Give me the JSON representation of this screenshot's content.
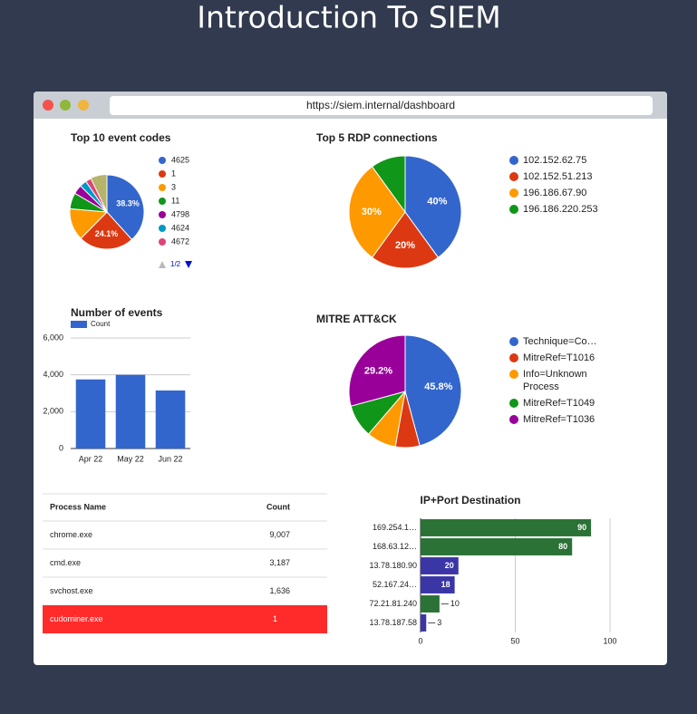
{
  "page": {
    "title": "Introduction To SIEM",
    "url": "https://siem.internal/dashboard"
  },
  "chart_data": [
    {
      "type": "pie",
      "title": "Top 10 event codes",
      "categories": [
        "4625",
        "1",
        "3",
        "11",
        "4798",
        "4624",
        "4672"
      ],
      "values": [
        38.3,
        24.1,
        14,
        7,
        4,
        3,
        2.5
      ],
      "value_labels": [
        "38.3%",
        "24.1%",
        null,
        null,
        null,
        null,
        null
      ],
      "colors": [
        "#3366cc",
        "#dc3912",
        "#ff9900",
        "#109618",
        "#990099",
        "#0099c6",
        "#dd4477"
      ],
      "legend_page": "1/2"
    },
    {
      "type": "pie",
      "title": "Top 5 RDP connections",
      "categories": [
        "102.152.62.75",
        "102.152.51.213",
        "196.186.67.90",
        "196.186.220.253"
      ],
      "values": [
        40,
        20,
        30,
        10
      ],
      "value_labels": [
        "40%",
        "20%",
        "30%",
        null
      ],
      "colors": [
        "#3366cc",
        "#dc3912",
        "#ff9900",
        "#109618"
      ]
    },
    {
      "type": "bar",
      "title": "Number of events",
      "categories": [
        "Apr 22",
        "May 22",
        "Jun 22"
      ],
      "series": [
        {
          "name": "Count",
          "color": "#3366cc",
          "values": [
            3750,
            4000,
            3150
          ]
        }
      ],
      "ylim": [
        0,
        6000
      ],
      "yticks": [
        0,
        {
          "value": 2000,
          "label": "2,000"
        },
        {
          "value": 4000,
          "label": "4,000"
        },
        {
          "value": 6000,
          "label": "6,000"
        }
      ],
      "grid": true
    },
    {
      "type": "pie",
      "title": "MITRE ATT&CK",
      "categories": [
        "Technique=Co…",
        "MitreRef=T1016",
        "Info=Unknown Process",
        "MitreRef=T1049",
        "MitreRef=T1036"
      ],
      "values": [
        45.8,
        7,
        8.5,
        9.5,
        29.2
      ],
      "value_labels": [
        "45.8%",
        null,
        null,
        null,
        "29.2%"
      ],
      "colors": [
        "#3366cc",
        "#dc3912",
        "#ff9900",
        "#109618",
        "#990099"
      ]
    },
    {
      "type": "hbar",
      "title": "IP+Port Destination",
      "categories": [
        "169.254.1…",
        "168.63.12…",
        "13.78.180.90",
        "52.167.24…",
        "72.21.81.240",
        "13.78.187.58"
      ],
      "values": [
        90,
        80,
        20,
        18,
        10,
        3
      ],
      "colors": [
        "#2a7236",
        "#2a7236",
        "#3b36a6",
        "#3b36a6",
        "#2a7236",
        "#3b36a6"
      ],
      "xlim": [
        0,
        100
      ],
      "xticks": [
        0,
        50,
        100
      ],
      "grid": true
    }
  ],
  "table": {
    "header": [
      "Process Name",
      "Count"
    ],
    "rows": [
      [
        "chrome.exe",
        "9,007"
      ],
      [
        "cmd.exe",
        "3,187"
      ],
      [
        "svchost.exe",
        "1,636"
      ],
      [
        "cudominer.exe",
        "1"
      ]
    ],
    "highlight_row": 3
  }
}
